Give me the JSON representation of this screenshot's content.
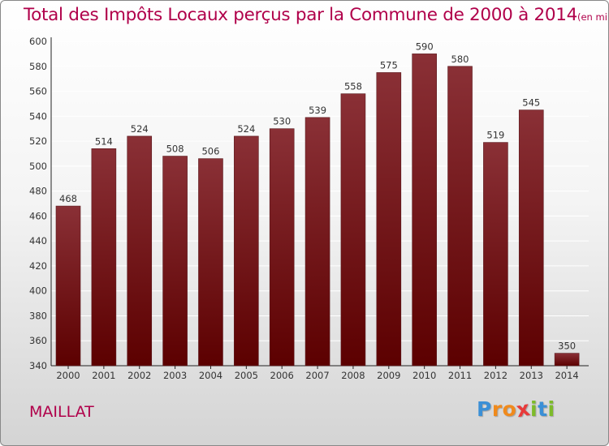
{
  "title": {
    "main": "Total des Impôts Locaux perçus par la Commune de 2000 à 2014",
    "unit": "(en milliers d'€)"
  },
  "commune": "MAILLAT",
  "logo": {
    "letters": [
      {
        "char": "P",
        "color": "#3a8fd6"
      },
      {
        "char": "r",
        "color": "#f08a1c"
      },
      {
        "char": "o",
        "color": "#f08a1c"
      },
      {
        "char": "x",
        "color": "#e83a3a"
      },
      {
        "char": "i",
        "color": "#7dbb2a"
      },
      {
        "char": "t",
        "color": "#3a8fd6"
      },
      {
        "char": "i",
        "color": "#7dbb2a"
      }
    ]
  },
  "colors": {
    "bar_top": "#8a3036",
    "bar_bottom": "#5c0000",
    "accent": "#b0004a",
    "grid": "#ffffff"
  },
  "chart_data": {
    "type": "bar",
    "title": "Total des Impôts Locaux perçus par la Commune de 2000 à 2014",
    "ylabel": "en milliers d'€",
    "xlabel": "",
    "categories": [
      "2000",
      "2001",
      "2002",
      "2003",
      "2004",
      "2005",
      "2006",
      "2007",
      "2008",
      "2009",
      "2010",
      "2011",
      "2012",
      "2013",
      "2014"
    ],
    "values": [
      468,
      514,
      524,
      508,
      506,
      524,
      530,
      539,
      558,
      575,
      590,
      580,
      519,
      545,
      350
    ],
    "ylim": [
      340,
      600
    ],
    "yticks": [
      "340",
      "360",
      "380",
      "400",
      "420",
      "440",
      "460",
      "480",
      "500",
      "520",
      "540",
      "560",
      "580",
      "600"
    ],
    "grid": true
  }
}
